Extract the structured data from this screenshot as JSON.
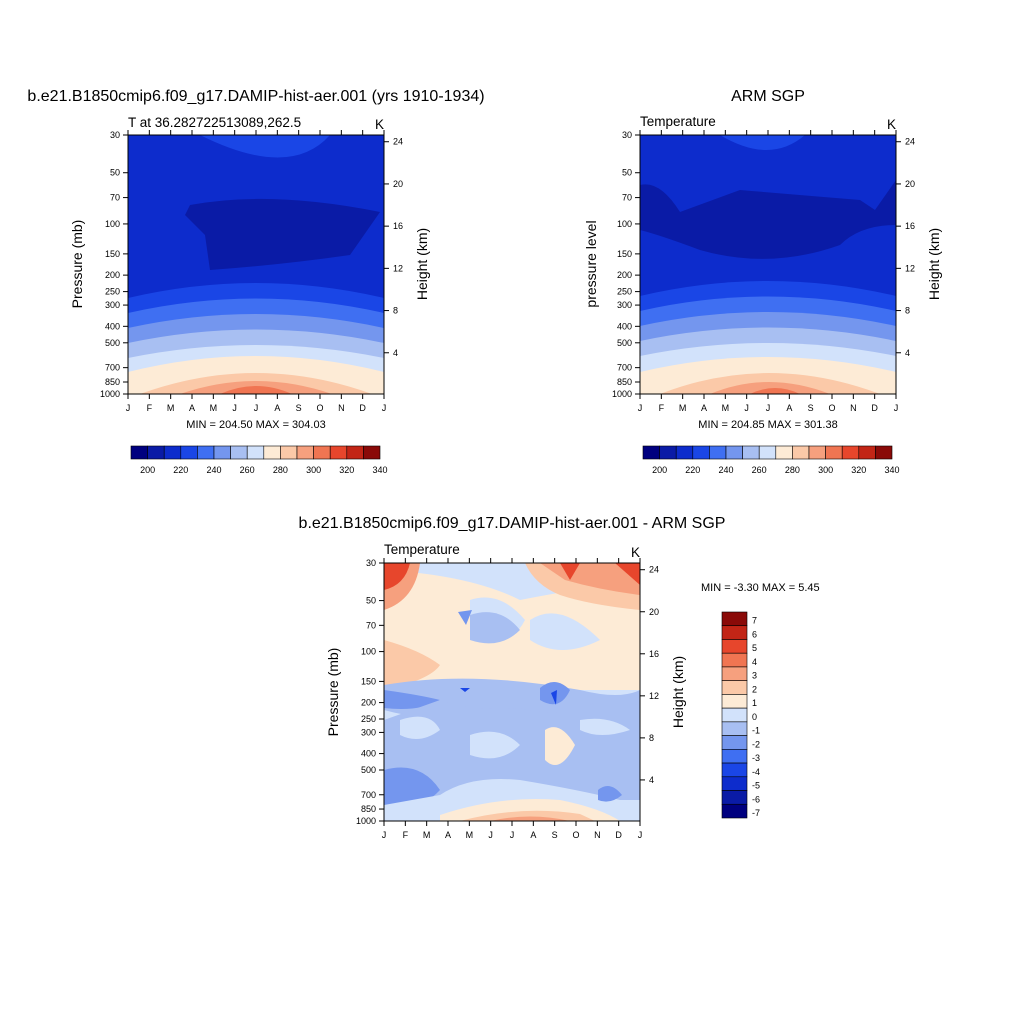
{
  "colors": {
    "scale": [
      "#00007f",
      "#0a1ba6",
      "#0d2ccc",
      "#1a46e6",
      "#3f6ff2",
      "#7496ee",
      "#a8bff2",
      "#d2e2fb",
      "#fdebd6",
      "#fbc9a8",
      "#f6a07e",
      "#f07552",
      "#e7462c",
      "#c22516",
      "#8a0a08"
    ]
  },
  "charts": {
    "model": {
      "title": "b.e21.B1850cmip6.f09_g17.DAMIP-hist-aer.001 (yrs 1910-1934)",
      "left_note": "T at 36.282722513089,262.5",
      "units": "K",
      "ylabel": "Pressure (mb)",
      "ylabel_right": "Height (km)",
      "stats": "MIN = 204.50 MAX = 304.03"
    },
    "obs": {
      "title": "ARM SGP",
      "left_note": "Temperature",
      "units": "K",
      "ylabel": "pressure level",
      "ylabel_right": "Height (km)",
      "stats": "MIN = 204.85 MAX = 301.38"
    },
    "diff": {
      "title": "b.e21.B1850cmip6.f09_g17.DAMIP-hist-aer.001 - ARM SGP",
      "left_note": "Temperature",
      "units": "K",
      "ylabel": "Pressure (mb)",
      "ylabel_right": "Height (km)",
      "stats": "MIN =  -3.30 MAX =   5.45"
    }
  },
  "chart_data": [
    {
      "type": "heatmap",
      "title": "b.e21.B1850cmip6.f09_g17.DAMIP-hist-aer.001 (yrs 1910-1934)",
      "field": "T at 36.282722513089,262.5",
      "units": "K",
      "x": [
        "J",
        "F",
        "M",
        "A",
        "M",
        "J",
        "J",
        "A",
        "S",
        "O",
        "N",
        "D",
        "J"
      ],
      "y_pressure_ticks": [
        30,
        50,
        70,
        100,
        150,
        200,
        250,
        300,
        400,
        500,
        700,
        850,
        1000
      ],
      "y_height_ticks": [
        4,
        8,
        12,
        16,
        20,
        24
      ],
      "min": 204.5,
      "max": 304.03,
      "colorbar_labels": [
        200,
        220,
        240,
        260,
        280,
        300,
        320,
        340
      ]
    },
    {
      "type": "heatmap",
      "title": "ARM SGP",
      "field": "Temperature",
      "units": "K",
      "x": [
        "J",
        "F",
        "M",
        "A",
        "M",
        "J",
        "J",
        "A",
        "S",
        "O",
        "N",
        "D",
        "J"
      ],
      "y_pressure_ticks": [
        30,
        50,
        70,
        100,
        150,
        200,
        250,
        300,
        400,
        500,
        700,
        850,
        1000
      ],
      "y_height_ticks": [
        4,
        8,
        12,
        16,
        20,
        24
      ],
      "min": 204.85,
      "max": 301.38,
      "colorbar_labels": [
        200,
        220,
        240,
        260,
        280,
        300,
        320,
        340
      ]
    },
    {
      "type": "heatmap",
      "title": "b.e21.B1850cmip6.f09_g17.DAMIP-hist-aer.001 - ARM SGP",
      "field": "Temperature",
      "units": "K",
      "x": [
        "J",
        "F",
        "M",
        "A",
        "M",
        "J",
        "J",
        "A",
        "S",
        "O",
        "N",
        "D",
        "J"
      ],
      "y_pressure_ticks": [
        30,
        50,
        70,
        100,
        150,
        200,
        250,
        300,
        400,
        500,
        700,
        850,
        1000
      ],
      "y_height_ticks": [
        4,
        8,
        12,
        16,
        20,
        24
      ],
      "min": -3.3,
      "max": 5.45,
      "colorbar_labels": [
        7,
        6,
        5,
        4,
        3,
        2,
        1,
        0,
        -1,
        -2,
        -3,
        -4,
        -5,
        -6,
        -7
      ]
    }
  ]
}
